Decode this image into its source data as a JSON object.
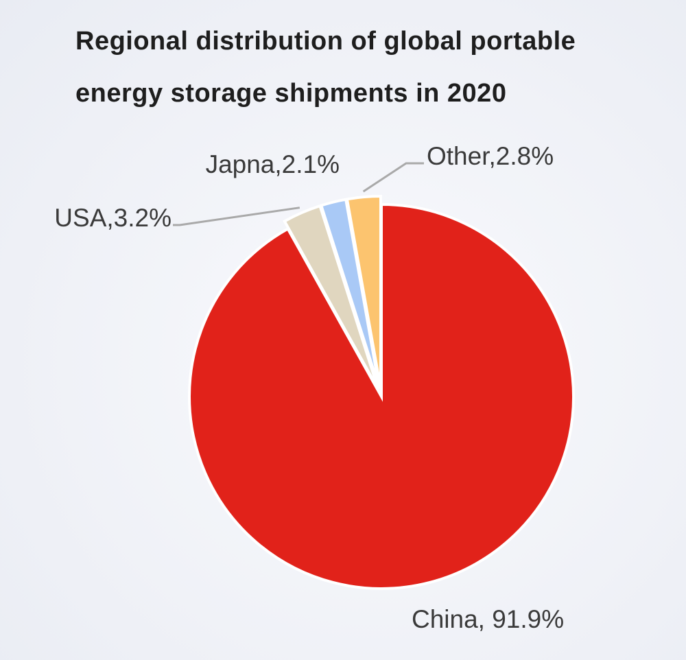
{
  "chart_data": {
    "type": "pie",
    "title": "Regional distribution of global portable energy storage shipments in 2020",
    "categories": [
      "China",
      "USA",
      "Japna",
      "Other"
    ],
    "values": [
      91.9,
      3.2,
      2.1,
      2.8
    ],
    "value_labels": [
      "China, 91.9%",
      "USA,3.2%",
      "Japna,2.1%",
      "Other,2.8%"
    ],
    "colors": [
      "#e1221a",
      "#e0d6bf",
      "#a9c9f6",
      "#fcc46f"
    ]
  }
}
